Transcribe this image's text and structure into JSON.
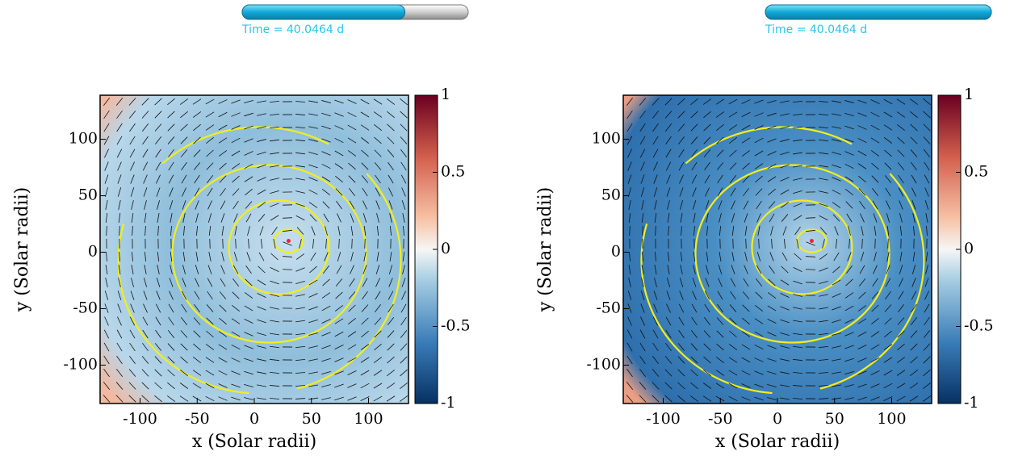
{
  "chart_data": [
    {
      "type": "field",
      "time_label": "Time = 40.0464 d",
      "progress": 0.72,
      "xlabel": "x (Solar radii)",
      "ylabel": "y (Solar radii)",
      "xlim": [
        -135,
        135
      ],
      "ylim": [
        -134,
        139
      ],
      "xticks": [
        -100,
        -50,
        0,
        50,
        100
      ],
      "yticks": [
        -100,
        -50,
        0,
        50,
        100
      ],
      "clim": [
        -1,
        1
      ],
      "cticks": [
        -1,
        -0.5,
        0,
        0.5,
        1
      ]
    },
    {
      "type": "field",
      "time_label": "Time = 40.0464 d",
      "progress": 1,
      "xlabel": "x (Solar radii)",
      "ylabel": "y (Solar radii)",
      "xlim": [
        -135,
        135
      ],
      "ylim": [
        -134,
        139
      ],
      "xticks": [
        -100,
        -50,
        0,
        50,
        100
      ],
      "yticks": [
        -100,
        -50,
        0,
        50,
        100
      ],
      "clim": [
        -1,
        1
      ],
      "cticks": [
        -1,
        -0.5,
        0,
        0.5,
        1
      ]
    }
  ]
}
